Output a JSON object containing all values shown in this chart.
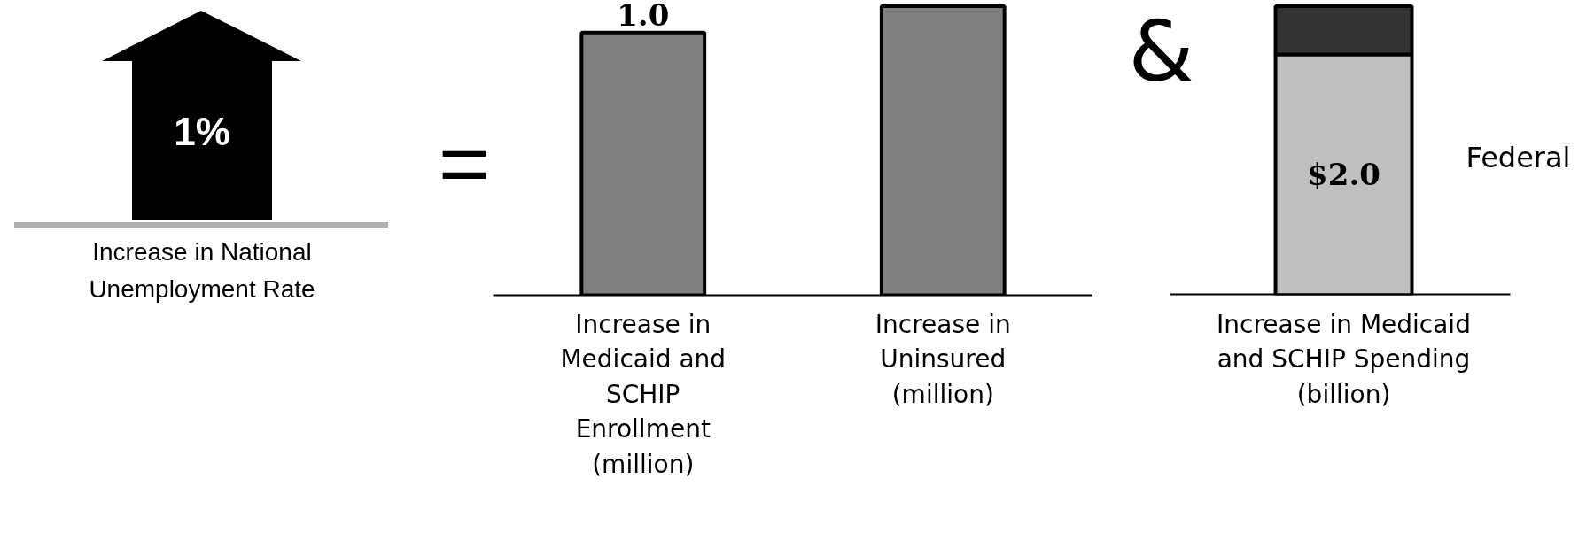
{
  "chart_data": [
    {
      "type": "other",
      "annotations": [
        "1%",
        "Increase in National\nUnemployment Rate",
        "="
      ]
    },
    {
      "type": "bar",
      "categories": [
        "Increase in\nMedicaid and\nSCHIP\nEnrollment\n(million)",
        "Increase in\nUninsured\n(million)"
      ],
      "values": [
        1.0,
        1.1
      ],
      "value_labels": [
        "1.0",
        null
      ],
      "color": "#808080"
    },
    {
      "type": "bar",
      "stacked": true,
      "categories": [
        "Increase in Medicaid\nand SCHIP Spending\n(billion)"
      ],
      "annotations": [
        "&"
      ],
      "series": [
        {
          "name": "Federal",
          "color": "#c0c0c0",
          "values": [
            2.0
          ],
          "value_labels": [
            "$2.0"
          ]
        },
        {
          "color": "#333333",
          "values": [
            0.4
          ]
        }
      ]
    }
  ]
}
